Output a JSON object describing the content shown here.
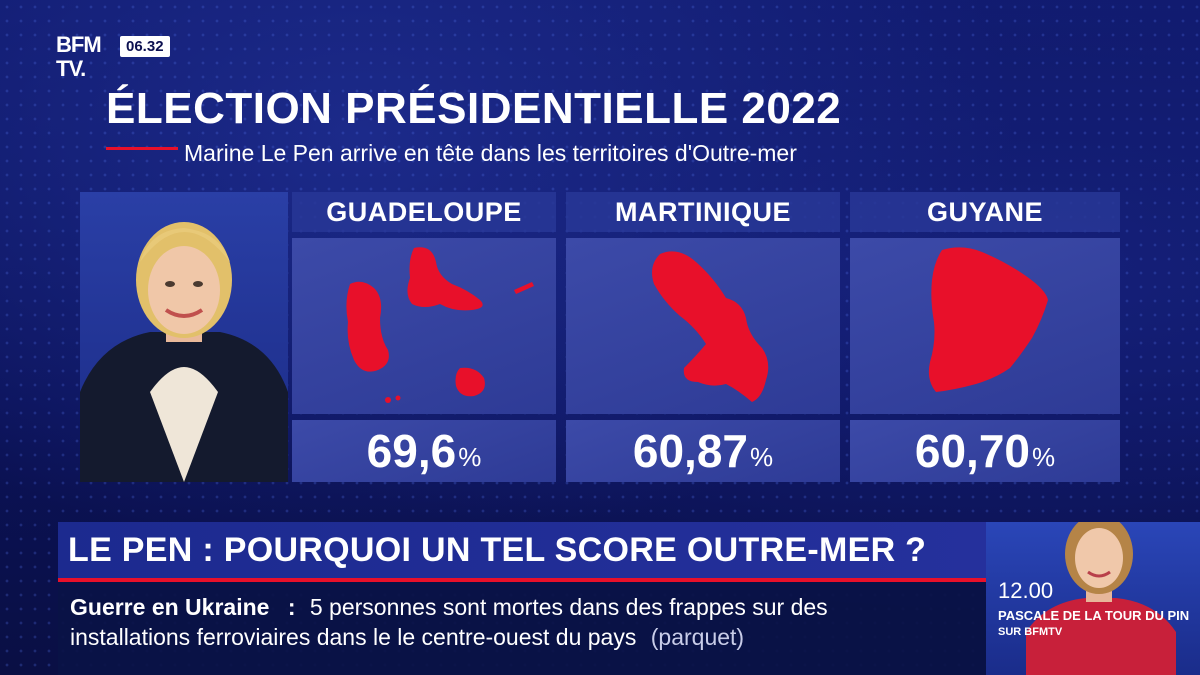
{
  "brand": {
    "logo_line1": "BFM",
    "logo_line2": "TV.",
    "clock": "06.32"
  },
  "graphic": {
    "title": "ÉLECTION PRÉSIDENTIELLE 2022",
    "subtitle": "Marine Le Pen arrive en tête dans les territoires d'Outre-mer",
    "columns": [
      {
        "territory": "GUADELOUPE",
        "value": "69,6",
        "unit": "%"
      },
      {
        "territory": "MARTINIQUE",
        "value": "60,87",
        "unit": "%"
      },
      {
        "territory": "GUYANE",
        "value": "60,70",
        "unit": "%"
      }
    ],
    "map_fill_color": "#e8102a"
  },
  "banner": {
    "headline": "LE PEN : POURQUOI UN TEL SCORE OUTRE-MER ?"
  },
  "ticker": {
    "topic": "Guerre en Ukraine",
    "separator": ":",
    "text_line1": "5 personnes sont mortes dans des frappes sur des",
    "text_line2": "installations ferroviaires dans le le centre-ouest du pays",
    "source": "(parquet)"
  },
  "next_show": {
    "time": "12.00",
    "presenter": "PASCALE DE LA TOUR DU PIN",
    "channel": "SUR BFMTV"
  },
  "colors": {
    "accent_red": "#e8102a",
    "navy": "#0c1050",
    "panel_blue": "#2e3b96"
  }
}
